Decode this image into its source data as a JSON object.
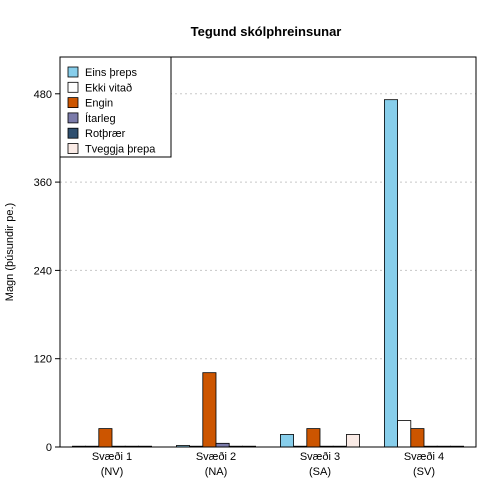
{
  "chart_data": {
    "type": "bar",
    "title": "Tegund skólphreinsunar",
    "xlabel": "",
    "ylabel": "Magn (þúsundir pe.)",
    "ylim": [
      0,
      530
    ],
    "yticks": [
      0,
      120,
      240,
      360,
      480
    ],
    "grid": true,
    "legend_position": "top-left",
    "categories": [
      {
        "line1": "Svæði 1",
        "line2": "(NV)"
      },
      {
        "line1": "Svæði 2",
        "line2": "(NA)"
      },
      {
        "line1": "Svæði 3",
        "line2": "(SA)"
      },
      {
        "line1": "Svæði 4",
        "line2": "(SV)"
      }
    ],
    "series": [
      {
        "name": "Eins þreps",
        "color": "#87CEEB",
        "values": [
          0,
          2,
          17,
          472
        ]
      },
      {
        "name": "Ekki vitað",
        "color": "#FFFFFF",
        "values": [
          0,
          1,
          0,
          36
        ]
      },
      {
        "name": "Engin",
        "color": "#CC5500",
        "values": [
          25,
          101,
          25,
          25
        ]
      },
      {
        "name": "Ítarleg",
        "color": "#7B7BAA",
        "values": [
          1,
          5,
          1,
          0
        ]
      },
      {
        "name": "Rotþrær",
        "color": "#2F4F6F",
        "values": [
          0,
          1,
          0,
          0
        ]
      },
      {
        "name": "Tveggja þrepa",
        "color": "#FAEBE6",
        "values": [
          1,
          1,
          17,
          0
        ]
      }
    ]
  }
}
